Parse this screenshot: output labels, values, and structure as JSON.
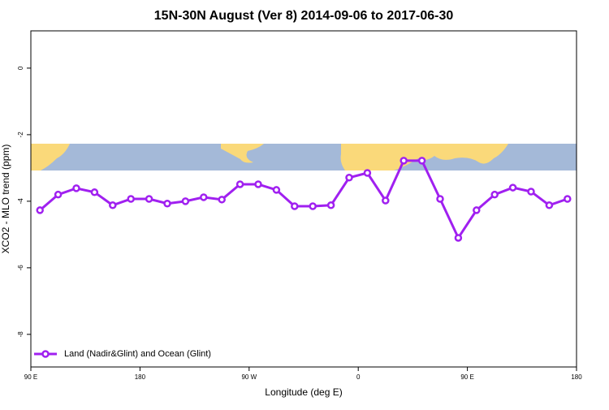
{
  "chart_data": {
    "type": "line",
    "title": "15N-30N August (Ver 8)   2014-09-06 to 2017-06-30",
    "x_label": "Longitude (deg E)",
    "y_label": "XCO2 - MLO trend (ppm)",
    "x": [
      97.5,
      112.5,
      127.5,
      142.5,
      157.5,
      172.5,
      187.5,
      202.5,
      217.5,
      232.5,
      247.5,
      262.5,
      277.5,
      292.5,
      307.5,
      322.5,
      337.5,
      352.5,
      367.5,
      382.5,
      397.5,
      412.5,
      427.5,
      442.5,
      457.5,
      472.5,
      487.5,
      502.5,
      517.5,
      532.5
    ],
    "series": [
      {
        "name": "Land (Nadir&Glint) and Ocean (Glint)",
        "color": "#a020f0",
        "values": [
          -4.27,
          -3.8,
          -3.61,
          -3.73,
          -4.12,
          -3.93,
          -3.93,
          -4.07,
          -4.0,
          -3.88,
          -3.95,
          -3.49,
          -3.49,
          -3.66,
          -4.15,
          -4.15,
          -4.12,
          -3.29,
          -3.15,
          -3.98,
          -2.78,
          -2.78,
          -3.93,
          -5.1,
          -4.27,
          -3.8,
          -3.59,
          -3.71,
          -4.12,
          -3.93
        ]
      }
    ],
    "xlim": [
      90,
      540
    ],
    "xticks": [
      {
        "value": 90,
        "label": "90 E"
      },
      {
        "value": 180,
        "label": "180"
      },
      {
        "value": 270,
        "label": "90 W"
      },
      {
        "value": 360,
        "label": "0"
      },
      {
        "value": 450,
        "label": "90 E"
      },
      {
        "value": 540,
        "label": "180"
      }
    ],
    "ylim": [
      -8.98,
      1.12
    ],
    "yticks": [
      0,
      -2,
      -4,
      -6,
      -8
    ],
    "legend": "bottom-left"
  }
}
